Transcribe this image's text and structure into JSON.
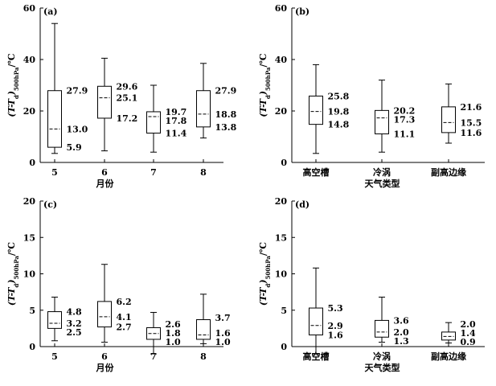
{
  "chart_data": [
    {
      "type": "boxplot",
      "panel_label": "(a)",
      "ylabel": "(T-T_d)_500hPa/℃",
      "xlabel": "月份",
      "ylim": [
        0,
        60
      ],
      "yticks": [
        "0",
        "20",
        "40",
        "60"
      ],
      "categories": [
        "5",
        "6",
        "7",
        "8"
      ],
      "boxes": [
        {
          "min": 3.5,
          "q1": 5.9,
          "median": 13.0,
          "q3": 27.9,
          "max": 54.0,
          "labels": {
            "q3": "27.9",
            "median": "13.0",
            "q1": "5.9"
          }
        },
        {
          "min": 4.5,
          "q1": 17.2,
          "median": 25.1,
          "q3": 29.6,
          "max": 40.5,
          "labels": {
            "q3": "29.6",
            "median": "25.1",
            "q1": "17.2"
          }
        },
        {
          "min": 4.0,
          "q1": 11.4,
          "median": 17.8,
          "q3": 19.7,
          "max": 30.0,
          "labels": {
            "q3": "19.7",
            "median": "17.8",
            "q1": "11.4"
          }
        },
        {
          "min": 9.5,
          "q1": 13.8,
          "median": 18.8,
          "q3": 27.9,
          "max": 38.5,
          "labels": {
            "q3": "27.9",
            "median": "18.8",
            "q1": "13.8"
          }
        }
      ]
    },
    {
      "type": "boxplot",
      "panel_label": "(b)",
      "ylabel": "(T-T_d)_500hPa/℃",
      "xlabel": "天气类型",
      "ylim": [
        0,
        60
      ],
      "yticks": [
        "0",
        "20",
        "40",
        "60"
      ],
      "categories": [
        "高空槽",
        "冷涡",
        "副高边缘"
      ],
      "boxes": [
        {
          "min": 3.5,
          "q1": 14.8,
          "median": 19.8,
          "q3": 25.8,
          "max": 38.0,
          "labels": {
            "q3": "25.8",
            "median": "19.8",
            "q1": "14.8"
          }
        },
        {
          "min": 4.0,
          "q1": 11.1,
          "median": 17.3,
          "q3": 20.2,
          "max": 32.0,
          "labels": {
            "q3": "20.2",
            "median": "17.3",
            "q1": "11.1"
          }
        },
        {
          "min": 7.5,
          "q1": 11.6,
          "median": 15.5,
          "q3": 21.6,
          "max": 30.5,
          "labels": {
            "q3": "21.6",
            "median": "15.5",
            "q1": "11.6"
          }
        }
      ]
    },
    {
      "type": "boxplot",
      "panel_label": "(c)",
      "ylabel": "(T-T_d)_500hPa/℃",
      "xlabel": "月份",
      "ylim": [
        0,
        20
      ],
      "yticks": [
        "0",
        "5",
        "10",
        "15",
        "20"
      ],
      "categories": [
        "5",
        "6",
        "7",
        "8"
      ],
      "boxes": [
        {
          "min": 0.8,
          "q1": 2.5,
          "median": 3.2,
          "q3": 4.8,
          "max": 6.8,
          "labels": {
            "q3": "4.8",
            "median": "3.2",
            "q1": "2.5"
          }
        },
        {
          "min": 0.6,
          "q1": 2.7,
          "median": 4.1,
          "q3": 6.2,
          "max": 11.3,
          "labels": {
            "q3": "6.2",
            "median": "4.1",
            "q1": "2.7"
          }
        },
        {
          "min": -1.0,
          "q1": 1.0,
          "median": 1.8,
          "q3": 2.6,
          "max": 4.7,
          "labels": {
            "q3": "2.6",
            "median": "1.8",
            "q1": "1.0"
          }
        },
        {
          "min": 0.4,
          "q1": 1.0,
          "median": 1.6,
          "q3": 3.7,
          "max": 7.2,
          "labels": {
            "q3": "3.7",
            "median": "1.6",
            "q1": "1.0"
          }
        }
      ]
    },
    {
      "type": "boxplot",
      "panel_label": "(d)",
      "ylabel": "(T-T_d)_500hPa/℃",
      "xlabel": "天气类型",
      "ylim": [
        0,
        20
      ],
      "yticks": [
        "0",
        "5",
        "10",
        "15",
        "20"
      ],
      "categories": [
        "高空槽",
        "冷涡",
        "副高边缘"
      ],
      "boxes": [
        {
          "min": -1.0,
          "q1": 1.6,
          "median": 2.9,
          "q3": 5.3,
          "max": 10.8,
          "labels": {
            "q3": "5.3",
            "median": "2.9",
            "q1": "1.6"
          }
        },
        {
          "min": 0.6,
          "q1": 1.3,
          "median": 2.0,
          "q3": 3.6,
          "max": 6.8,
          "labels": {
            "q3": "3.6",
            "median": "2.0",
            "q1": "1.3"
          }
        },
        {
          "min": 0.5,
          "q1": 0.9,
          "median": 1.4,
          "q3": 2.0,
          "max": 3.3,
          "labels": {
            "q3": "2.0",
            "median": "1.4",
            "q1": "0.9"
          }
        }
      ]
    }
  ]
}
